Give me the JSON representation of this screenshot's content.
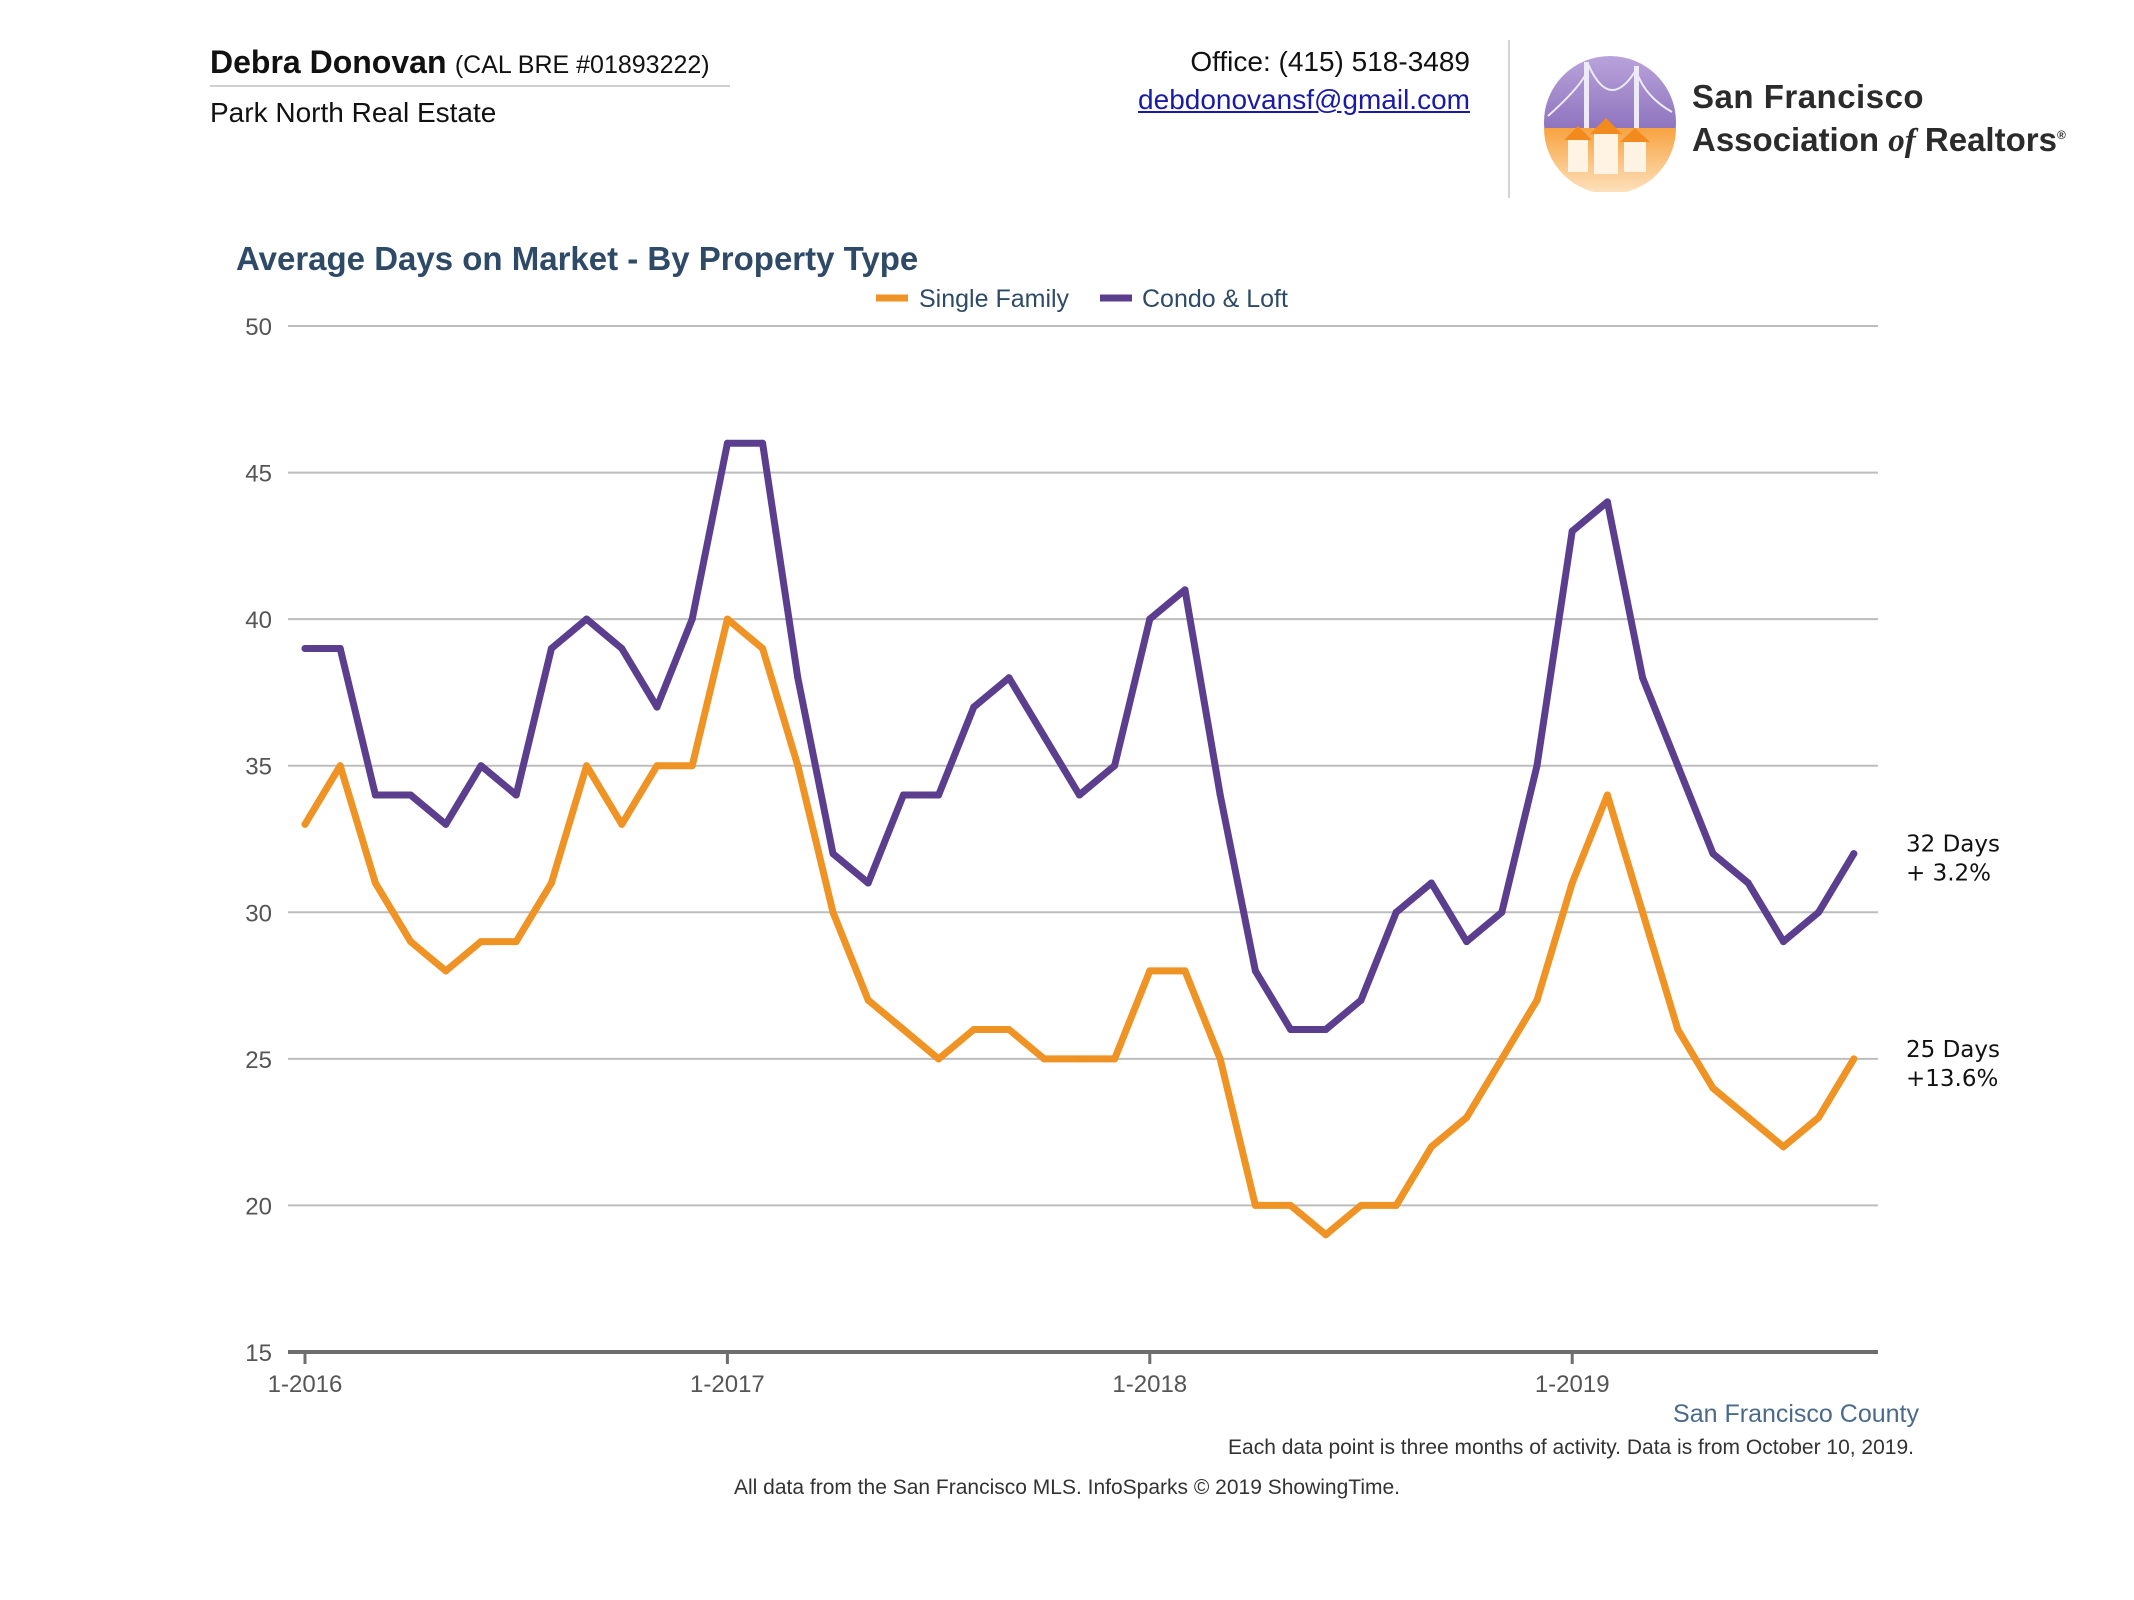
{
  "header": {
    "agent_name": "Debra Donovan",
    "agent_license": "(CAL BRE #01893222)",
    "agent_company": "Park North Real Estate",
    "office": "Office: (415) 518-3489",
    "email": "debdonovansf@gmail.com",
    "logo_line1": "San Francisco",
    "logo_line2_pre": "Association ",
    "logo_line2_of": "of",
    "logo_line2_post": " Realtors",
    "logo_reg": "®"
  },
  "chart_data": {
    "type": "line",
    "title": "Average Days on Market - By Property Type",
    "xlabel": "",
    "ylabel": "",
    "ylim": [
      15,
      50
    ],
    "yticks": [
      "15",
      "20",
      "25",
      "30",
      "35",
      "40",
      "45",
      "50"
    ],
    "x_tick_labels": [
      "1-2016",
      "1-2017",
      "1-2018",
      "1-2019"
    ],
    "x_tick_indices": [
      0,
      12,
      24,
      36
    ],
    "x": [
      "1-2016",
      "2-2016",
      "3-2016",
      "4-2016",
      "5-2016",
      "6-2016",
      "7-2016",
      "8-2016",
      "9-2016",
      "10-2016",
      "11-2016",
      "12-2016",
      "1-2017",
      "2-2017",
      "3-2017",
      "4-2017",
      "5-2017",
      "6-2017",
      "7-2017",
      "8-2017",
      "9-2017",
      "10-2017",
      "11-2017",
      "12-2017",
      "1-2018",
      "2-2018",
      "3-2018",
      "4-2018",
      "5-2018",
      "6-2018",
      "7-2018",
      "8-2018",
      "9-2018",
      "10-2018",
      "11-2018",
      "12-2018",
      "1-2019",
      "2-2019",
      "3-2019",
      "4-2019",
      "5-2019",
      "6-2019",
      "7-2019",
      "8-2019",
      "9-2019"
    ],
    "grid": true,
    "legend_position": "top",
    "series": [
      {
        "name": "Single Family",
        "color": "#ef9324",
        "values": [
          33,
          35,
          31,
          29,
          28,
          29,
          29,
          31,
          35,
          33,
          35,
          35,
          40,
          39,
          35,
          30,
          27,
          26,
          25,
          26,
          26,
          25,
          25,
          25,
          28,
          28,
          25,
          20,
          20,
          19,
          20,
          20,
          22,
          23,
          25,
          27,
          31,
          34,
          30,
          26,
          24,
          23,
          22,
          23,
          25
        ],
        "end_label_line1": "25 Days",
        "end_label_line2": "+13.6%"
      },
      {
        "name": "Condo & Loft",
        "color": "#5b3f8e",
        "values": [
          39,
          39,
          34,
          34,
          33,
          35,
          34,
          39,
          40,
          39,
          37,
          40,
          46,
          46,
          38,
          32,
          31,
          34,
          34,
          37,
          38,
          36,
          34,
          35,
          40,
          41,
          34,
          28,
          26,
          26,
          27,
          30,
          31,
          29,
          30,
          35,
          43,
          44,
          38,
          35,
          32,
          31,
          29,
          30,
          32
        ],
        "end_label_line1": "32 Days",
        "end_label_line2": "+ 3.2%"
      }
    ]
  },
  "footer": {
    "region": "San Francisco County",
    "note": "Each data point is three months of activity. Data is from October 10, 2019.",
    "source": "All data from the San Francisco MLS. InfoSparks © 2019 ShowingTime."
  }
}
